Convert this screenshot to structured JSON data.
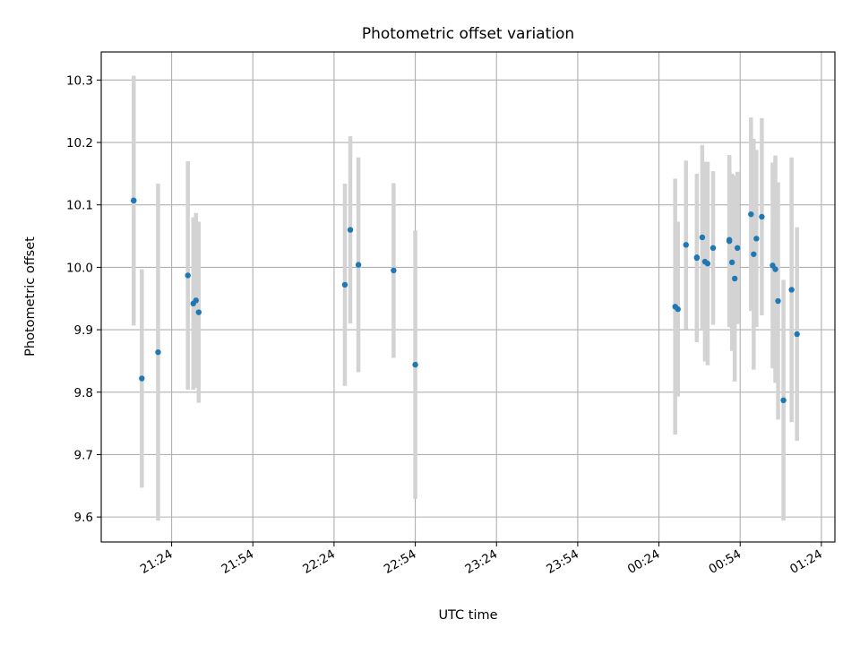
{
  "chart_data": {
    "type": "scatter",
    "title": "Photometric offset variation",
    "xlabel": "UTC time",
    "ylabel": "Photometric offset",
    "xticks": [
      "21:24",
      "21:54",
      "22:24",
      "22:54",
      "23:24",
      "23:54",
      "00:24",
      "00:54",
      "01:24"
    ],
    "yticks": [
      "9.6",
      "9.7",
      "9.8",
      "9.9",
      "10.0",
      "10.1",
      "10.2",
      "10.3"
    ],
    "x_start_clock": "21:24",
    "xlim_clock": [
      "20:58",
      "01:29"
    ],
    "ylim": [
      9.56,
      10.345
    ],
    "grid": true,
    "marker_color": "#1f77b4",
    "errorbar_color": "#d3d3d3",
    "points": [
      {
        "time": "21:10",
        "y": 10.107,
        "err": 0.2
      },
      {
        "time": "21:10",
        "y": 10.107,
        "err": 0.2
      },
      {
        "time": "21:13",
        "y": 9.822,
        "err": 0.175
      },
      {
        "time": "21:19",
        "y": 9.864,
        "err": 0.27
      },
      {
        "time": "21:30",
        "y": 9.987,
        "err": 0.183
      },
      {
        "time": "21:32",
        "y": 9.942,
        "err": 0.138
      },
      {
        "time": "21:33",
        "y": 9.947,
        "err": 0.14
      },
      {
        "time": "21:34",
        "y": 9.928,
        "err": 0.145
      },
      {
        "time": "22:28",
        "y": 9.972,
        "err": 0.162
      },
      {
        "time": "22:30",
        "y": 10.06,
        "err": 0.15
      },
      {
        "time": "22:33",
        "y": 10.004,
        "err": 0.172
      },
      {
        "time": "22:46",
        "y": 9.995,
        "err": 0.14
      },
      {
        "time": "22:54",
        "y": 9.844,
        "err": 0.215
      },
      {
        "time": "00:30",
        "y": 9.937,
        "err": 0.205
      },
      {
        "time": "00:31",
        "y": 9.933,
        "err": 0.14
      },
      {
        "time": "00:34",
        "y": 10.036,
        "err": 0.135
      },
      {
        "time": "00:38",
        "y": 10.016,
        "err": 0.125
      },
      {
        "time": "00:38",
        "y": 10.015,
        "err": 0.135
      },
      {
        "time": "00:40",
        "y": 10.048,
        "err": 0.148
      },
      {
        "time": "00:41",
        "y": 10.009,
        "err": 0.16
      },
      {
        "time": "00:42",
        "y": 10.006,
        "err": 0.163
      },
      {
        "time": "00:44",
        "y": 10.031,
        "err": 0.123
      },
      {
        "time": "00:50",
        "y": 10.042,
        "err": 0.138
      },
      {
        "time": "00:50",
        "y": 10.044,
        "err": 0.13
      },
      {
        "time": "00:51",
        "y": 10.008,
        "err": 0.142
      },
      {
        "time": "00:52",
        "y": 9.982,
        "err": 0.165
      },
      {
        "time": "00:53",
        "y": 10.031,
        "err": 0.122
      },
      {
        "time": "00:58",
        "y": 10.085,
        "err": 0.155
      },
      {
        "time": "00:59",
        "y": 10.021,
        "err": 0.185
      },
      {
        "time": "01:00",
        "y": 10.046,
        "err": 0.142
      },
      {
        "time": "01:02",
        "y": 10.081,
        "err": 0.158
      },
      {
        "time": "01:06",
        "y": 10.003,
        "err": 0.165
      },
      {
        "time": "01:07",
        "y": 9.997,
        "err": 0.182
      },
      {
        "time": "01:08",
        "y": 9.946,
        "err": 0.19
      },
      {
        "time": "01:10",
        "y": 9.787,
        "err": 0.193
      },
      {
        "time": "01:13",
        "y": 9.964,
        "err": 0.212
      },
      {
        "time": "01:15",
        "y": 9.893,
        "err": 0.171
      }
    ]
  }
}
